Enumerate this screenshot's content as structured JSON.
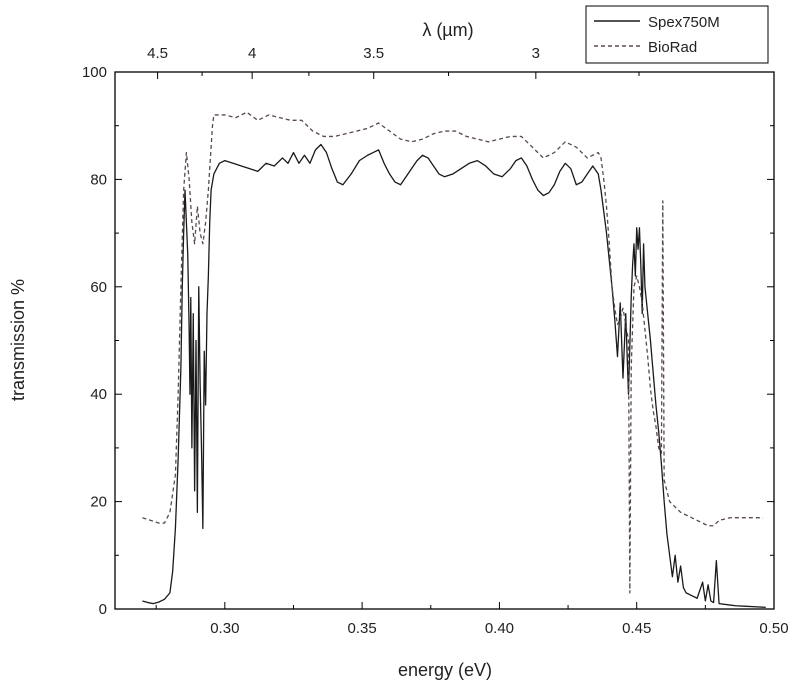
{
  "chart_data": {
    "type": "line",
    "xlabel": "energy (eV)",
    "ylabel": "transmission %",
    "x2label": "λ (µm)",
    "xlim": [
      0.26,
      0.5
    ],
    "ylim": [
      0,
      100
    ],
    "x_ticks": [
      0.3,
      0.35,
      0.4,
      0.45,
      0.5
    ],
    "x_tick_labels": [
      "0.30",
      "0.35",
      "0.40",
      "0.45",
      "0.50"
    ],
    "y_ticks": [
      0,
      20,
      40,
      60,
      80,
      100
    ],
    "y_tick_labels": [
      "0",
      "20",
      "40",
      "60",
      "80",
      "100"
    ],
    "x2_ticks_um": [
      4.5,
      4,
      3.5,
      3
    ],
    "x2_tick_labels": [
      "4.5",
      "4",
      "3.5",
      "3"
    ],
    "grid": false,
    "legend_position": "top-right-outside",
    "legend": [
      {
        "name": "Spex750M",
        "style": "solid"
      },
      {
        "name": "BioRad",
        "style": "dashed"
      }
    ],
    "series": [
      {
        "name": "Spex750M",
        "style": "solid",
        "color": "#1a1a1a",
        "points": [
          [
            0.27,
            1.5
          ],
          [
            0.272,
            1.2
          ],
          [
            0.274,
            1.0
          ],
          [
            0.276,
            1.3
          ],
          [
            0.278,
            1.8
          ],
          [
            0.28,
            3.0
          ],
          [
            0.281,
            7
          ],
          [
            0.282,
            15
          ],
          [
            0.283,
            28
          ],
          [
            0.284,
            45
          ],
          [
            0.2845,
            60
          ],
          [
            0.285,
            70
          ],
          [
            0.2855,
            78
          ],
          [
            0.286,
            72
          ],
          [
            0.2865,
            66
          ],
          [
            0.287,
            52
          ],
          [
            0.2873,
            40
          ],
          [
            0.2876,
            58
          ],
          [
            0.288,
            30
          ],
          [
            0.2885,
            55
          ],
          [
            0.289,
            22
          ],
          [
            0.2895,
            50
          ],
          [
            0.29,
            18
          ],
          [
            0.2905,
            60
          ],
          [
            0.291,
            42
          ],
          [
            0.2915,
            30
          ],
          [
            0.292,
            15
          ],
          [
            0.2925,
            48
          ],
          [
            0.293,
            38
          ],
          [
            0.2935,
            55
          ],
          [
            0.294,
            62
          ],
          [
            0.2945,
            72
          ],
          [
            0.295,
            78
          ],
          [
            0.296,
            81
          ],
          [
            0.298,
            83
          ],
          [
            0.3,
            83.5
          ],
          [
            0.303,
            83
          ],
          [
            0.306,
            82.5
          ],
          [
            0.309,
            82
          ],
          [
            0.312,
            81.5
          ],
          [
            0.315,
            83
          ],
          [
            0.318,
            82.5
          ],
          [
            0.321,
            84
          ],
          [
            0.323,
            83
          ],
          [
            0.325,
            85
          ],
          [
            0.327,
            83
          ],
          [
            0.329,
            84.5
          ],
          [
            0.331,
            83
          ],
          [
            0.333,
            85.5
          ],
          [
            0.335,
            86.5
          ],
          [
            0.337,
            85
          ],
          [
            0.339,
            82
          ],
          [
            0.341,
            79.5
          ],
          [
            0.343,
            79
          ],
          [
            0.346,
            81
          ],
          [
            0.349,
            83.5
          ],
          [
            0.352,
            84.5
          ],
          [
            0.354,
            85
          ],
          [
            0.356,
            85.5
          ],
          [
            0.358,
            83
          ],
          [
            0.36,
            81
          ],
          [
            0.362,
            79.5
          ],
          [
            0.364,
            79
          ],
          [
            0.366,
            80.5
          ],
          [
            0.368,
            82
          ],
          [
            0.37,
            83.5
          ],
          [
            0.372,
            84.5
          ],
          [
            0.374,
            84
          ],
          [
            0.376,
            82.5
          ],
          [
            0.378,
            81
          ],
          [
            0.38,
            80.5
          ],
          [
            0.383,
            81
          ],
          [
            0.386,
            82
          ],
          [
            0.389,
            83
          ],
          [
            0.392,
            83.5
          ],
          [
            0.395,
            82.5
          ],
          [
            0.398,
            81
          ],
          [
            0.401,
            80.5
          ],
          [
            0.404,
            82
          ],
          [
            0.406,
            83.5
          ],
          [
            0.408,
            84
          ],
          [
            0.41,
            82.5
          ],
          [
            0.412,
            80
          ],
          [
            0.414,
            78
          ],
          [
            0.416,
            77
          ],
          [
            0.418,
            77.5
          ],
          [
            0.42,
            79
          ],
          [
            0.422,
            81.5
          ],
          [
            0.424,
            83
          ],
          [
            0.426,
            82
          ],
          [
            0.428,
            79
          ],
          [
            0.43,
            79.5
          ],
          [
            0.432,
            81
          ],
          [
            0.434,
            82.5
          ],
          [
            0.436,
            81
          ],
          [
            0.437,
            78
          ],
          [
            0.438,
            74
          ],
          [
            0.439,
            70
          ],
          [
            0.44,
            65
          ],
          [
            0.441,
            60
          ],
          [
            0.442,
            54
          ],
          [
            0.443,
            47
          ],
          [
            0.444,
            57
          ],
          [
            0.445,
            43
          ],
          [
            0.446,
            55
          ],
          [
            0.447,
            40
          ],
          [
            0.448,
            58
          ],
          [
            0.4485,
            64
          ],
          [
            0.449,
            68
          ],
          [
            0.4495,
            62
          ],
          [
            0.45,
            71
          ],
          [
            0.4505,
            67
          ],
          [
            0.451,
            71
          ],
          [
            0.4515,
            64
          ],
          [
            0.452,
            55
          ],
          [
            0.4525,
            68
          ],
          [
            0.453,
            60
          ],
          [
            0.454,
            55
          ],
          [
            0.455,
            50
          ],
          [
            0.456,
            44
          ],
          [
            0.457,
            38
          ],
          [
            0.458,
            33
          ],
          [
            0.459,
            27
          ],
          [
            0.46,
            20
          ],
          [
            0.461,
            14
          ],
          [
            0.462,
            10
          ],
          [
            0.463,
            6
          ],
          [
            0.464,
            10
          ],
          [
            0.465,
            5
          ],
          [
            0.466,
            8
          ],
          [
            0.467,
            4
          ],
          [
            0.468,
            3
          ],
          [
            0.47,
            2.5
          ],
          [
            0.472,
            2
          ],
          [
            0.474,
            5
          ],
          [
            0.475,
            1.5
          ],
          [
            0.476,
            4.5
          ],
          [
            0.477,
            1.5
          ],
          [
            0.478,
            1.2
          ],
          [
            0.479,
            9
          ],
          [
            0.48,
            1
          ],
          [
            0.483,
            0.8
          ],
          [
            0.486,
            0.6
          ],
          [
            0.49,
            0.5
          ],
          [
            0.494,
            0.4
          ],
          [
            0.497,
            0.3
          ]
        ]
      },
      {
        "name": "BioRad",
        "style": "dashed",
        "color": "#5a4a4a",
        "points": [
          [
            0.27,
            17
          ],
          [
            0.273,
            16.5
          ],
          [
            0.276,
            16
          ],
          [
            0.278,
            16
          ],
          [
            0.28,
            18
          ],
          [
            0.282,
            25
          ],
          [
            0.283,
            40
          ],
          [
            0.284,
            60
          ],
          [
            0.285,
            78
          ],
          [
            0.286,
            85
          ],
          [
            0.287,
            80
          ],
          [
            0.288,
            72
          ],
          [
            0.289,
            68
          ],
          [
            0.29,
            75
          ],
          [
            0.291,
            70
          ],
          [
            0.292,
            68
          ],
          [
            0.293,
            72
          ],
          [
            0.294,
            78
          ],
          [
            0.295,
            86
          ],
          [
            0.2955,
            90
          ],
          [
            0.296,
            92
          ],
          [
            0.3,
            92
          ],
          [
            0.304,
            91.5
          ],
          [
            0.308,
            92.5
          ],
          [
            0.312,
            91
          ],
          [
            0.316,
            92
          ],
          [
            0.32,
            91.5
          ],
          [
            0.324,
            91
          ],
          [
            0.328,
            91
          ],
          [
            0.332,
            89
          ],
          [
            0.336,
            88
          ],
          [
            0.34,
            88
          ],
          [
            0.344,
            88.5
          ],
          [
            0.348,
            89
          ],
          [
            0.352,
            89.5
          ],
          [
            0.356,
            90.5
          ],
          [
            0.36,
            89
          ],
          [
            0.364,
            87.5
          ],
          [
            0.368,
            87
          ],
          [
            0.372,
            87.5
          ],
          [
            0.376,
            88.5
          ],
          [
            0.38,
            89
          ],
          [
            0.384,
            89
          ],
          [
            0.388,
            88
          ],
          [
            0.392,
            87.5
          ],
          [
            0.396,
            87
          ],
          [
            0.4,
            87.5
          ],
          [
            0.404,
            88
          ],
          [
            0.408,
            88
          ],
          [
            0.412,
            86
          ],
          [
            0.416,
            84
          ],
          [
            0.42,
            85
          ],
          [
            0.424,
            87
          ],
          [
            0.428,
            86
          ],
          [
            0.432,
            84
          ],
          [
            0.436,
            85
          ],
          [
            0.437,
            84
          ],
          [
            0.438,
            80
          ],
          [
            0.439,
            75
          ],
          [
            0.44,
            68
          ],
          [
            0.441,
            60
          ],
          [
            0.442,
            56
          ],
          [
            0.443,
            53
          ],
          [
            0.444,
            54
          ],
          [
            0.445,
            56
          ],
          [
            0.446,
            53
          ],
          [
            0.447,
            50
          ],
          [
            0.4475,
            3
          ],
          [
            0.448,
            45
          ],
          [
            0.449,
            60
          ],
          [
            0.45,
            62
          ],
          [
            0.451,
            60
          ],
          [
            0.452,
            57
          ],
          [
            0.453,
            52
          ],
          [
            0.454,
            47
          ],
          [
            0.455,
            41
          ],
          [
            0.456,
            37
          ],
          [
            0.457,
            34
          ],
          [
            0.458,
            30
          ],
          [
            0.459,
            29
          ],
          [
            0.4595,
            76
          ],
          [
            0.46,
            24
          ],
          [
            0.462,
            20
          ],
          [
            0.464,
            19
          ],
          [
            0.466,
            18
          ],
          [
            0.468,
            17.5
          ],
          [
            0.47,
            17
          ],
          [
            0.472,
            16.5
          ],
          [
            0.474,
            16
          ],
          [
            0.476,
            15.5
          ],
          [
            0.478,
            15.5
          ],
          [
            0.48,
            16.5
          ],
          [
            0.484,
            17
          ],
          [
            0.488,
            17
          ],
          [
            0.492,
            17
          ],
          [
            0.496,
            17
          ]
        ]
      }
    ]
  }
}
